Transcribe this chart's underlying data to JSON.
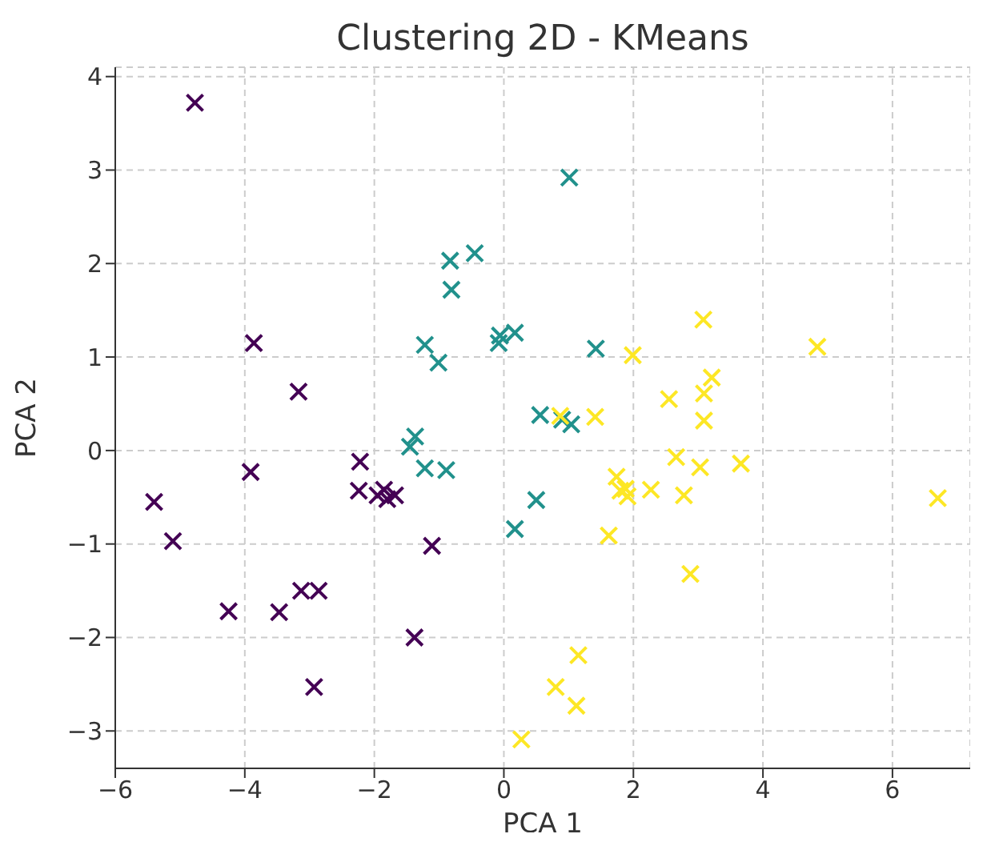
{
  "chart_data": {
    "type": "scatter",
    "title": "Clustering 2D - KMeans",
    "xlabel": "PCA 1",
    "ylabel": "PCA 2",
    "xlim": [
      -6,
      7.2
    ],
    "xticks": [
      -6,
      -4,
      -2,
      0,
      2,
      4,
      6
    ],
    "ylim": [
      -3.4,
      4.1
    ],
    "yticks": [
      -3,
      -2,
      -1,
      0,
      1,
      2,
      3,
      4
    ],
    "grid": true,
    "marker": "cross",
    "series": [
      {
        "color": "#440154",
        "x": [
          -4.77,
          -3.86,
          -3.17,
          -5.4,
          -5.11,
          -3.91,
          -2.22,
          -2.24,
          -1.95,
          -1.85,
          -1.8,
          -1.68,
          -1.11,
          -4.25,
          -3.47,
          -3.13,
          -2.86,
          -1.38,
          -2.93
        ],
        "values": [
          3.72,
          1.15,
          0.63,
          -0.55,
          -0.97,
          -0.23,
          -0.12,
          -0.43,
          -0.48,
          -0.42,
          -0.52,
          -0.48,
          -1.02,
          -1.72,
          -1.73,
          -1.5,
          -1.5,
          -2.0,
          -2.53
        ]
      },
      {
        "color": "#21918c",
        "x": [
          -0.83,
          -0.45,
          -0.81,
          -1.22,
          -1.01,
          -0.06,
          0.17,
          -0.08,
          1.01,
          1.42,
          0.56,
          0.9,
          1.04,
          -1.37,
          -1.45,
          -1.22,
          -0.89,
          0.17,
          0.5
        ],
        "values": [
          2.03,
          2.11,
          1.72,
          1.13,
          0.94,
          1.23,
          1.26,
          1.15,
          2.92,
          1.09,
          0.38,
          0.33,
          0.28,
          0.15,
          0.04,
          -0.19,
          -0.21,
          -0.84,
          -0.53
        ]
      },
      {
        "color": "#fde725",
        "x": [
          3.08,
          4.84,
          1.99,
          3.21,
          3.09,
          2.55,
          3.09,
          0.87,
          1.41,
          2.66,
          3.03,
          3.66,
          1.74,
          1.88,
          1.8,
          1.91,
          2.27,
          2.78,
          6.7,
          1.62,
          2.88,
          1.15,
          0.8,
          1.12,
          0.27
        ],
        "values": [
          1.4,
          1.11,
          1.02,
          0.78,
          0.61,
          0.55,
          0.32,
          0.37,
          0.36,
          -0.07,
          -0.18,
          -0.14,
          -0.28,
          -0.41,
          -0.43,
          -0.49,
          -0.42,
          -0.48,
          -0.51,
          -0.91,
          -1.32,
          -2.19,
          -2.53,
          -2.73,
          -3.09
        ]
      }
    ]
  }
}
